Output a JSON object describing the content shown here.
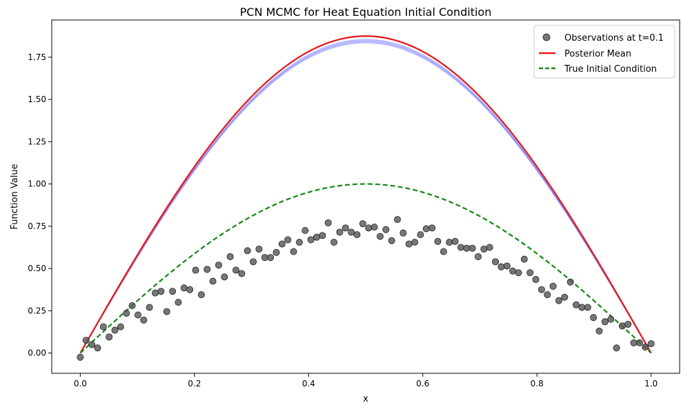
{
  "chart_data": {
    "type": "line",
    "title": "PCN MCMC for Heat Equation Initial Condition",
    "xlabel": "x",
    "ylabel": "Function Value",
    "xlim": [
      -0.05,
      1.05
    ],
    "ylim": [
      -0.12,
      1.97
    ],
    "x_ticks": [
      "0.0",
      "0.2",
      "0.4",
      "0.6",
      "0.8",
      "1.0"
    ],
    "y_ticks": [
      "0.00",
      "0.25",
      "0.50",
      "0.75",
      "1.00",
      "1.25",
      "1.50",
      "1.75"
    ],
    "legend_position": "top-right",
    "grid": false,
    "observations": {
      "name": "Observations at t=0.1",
      "color": "#555555",
      "x": [
        0.0,
        0.0101,
        0.0202,
        0.0303,
        0.0404,
        0.0505,
        0.0606,
        0.0707,
        0.0808,
        0.0909,
        0.101,
        0.1111,
        0.1212,
        0.1313,
        0.1414,
        0.1515,
        0.1616,
        0.1717,
        0.1818,
        0.1919,
        0.202,
        0.2121,
        0.2222,
        0.2323,
        0.2424,
        0.2525,
        0.2626,
        0.2727,
        0.2828,
        0.2929,
        0.303,
        0.3131,
        0.3232,
        0.3333,
        0.3434,
        0.3535,
        0.3636,
        0.3737,
        0.3838,
        0.3939,
        0.404,
        0.4141,
        0.4242,
        0.4343,
        0.4444,
        0.4545,
        0.4646,
        0.4747,
        0.4848,
        0.4949,
        0.5051,
        0.5152,
        0.5253,
        0.5354,
        0.5455,
        0.5556,
        0.5657,
        0.5758,
        0.5859,
        0.596,
        0.6061,
        0.6162,
        0.6263,
        0.6364,
        0.6465,
        0.6566,
        0.6667,
        0.6768,
        0.6869,
        0.697,
        0.7071,
        0.7172,
        0.7273,
        0.7374,
        0.7475,
        0.7576,
        0.7677,
        0.7778,
        0.7879,
        0.798,
        0.8081,
        0.8182,
        0.8283,
        0.8384,
        0.8485,
        0.8586,
        0.8687,
        0.8788,
        0.8889,
        0.899,
        0.9091,
        0.9192,
        0.9293,
        0.9394,
        0.9495,
        0.9596,
        0.9697,
        0.9798,
        0.9899,
        1.0
      ],
      "y": [
        -0.025,
        0.075,
        0.05,
        0.03,
        0.155,
        0.095,
        0.135,
        0.155,
        0.235,
        0.28,
        0.225,
        0.195,
        0.27,
        0.355,
        0.365,
        0.245,
        0.365,
        0.3,
        0.385,
        0.375,
        0.49,
        0.345,
        0.495,
        0.425,
        0.52,
        0.45,
        0.57,
        0.49,
        0.47,
        0.605,
        0.54,
        0.615,
        0.565,
        0.565,
        0.595,
        0.645,
        0.67,
        0.6,
        0.655,
        0.725,
        0.67,
        0.685,
        0.695,
        0.77,
        0.655,
        0.715,
        0.74,
        0.715,
        0.7,
        0.765,
        0.74,
        0.745,
        0.69,
        0.73,
        0.665,
        0.79,
        0.71,
        0.645,
        0.655,
        0.7,
        0.735,
        0.74,
        0.66,
        0.6,
        0.655,
        0.66,
        0.625,
        0.62,
        0.62,
        0.57,
        0.615,
        0.625,
        0.54,
        0.51,
        0.515,
        0.485,
        0.475,
        0.555,
        0.475,
        0.435,
        0.375,
        0.345,
        0.395,
        0.31,
        0.33,
        0.42,
        0.285,
        0.27,
        0.27,
        0.21,
        0.13,
        0.185,
        0.2,
        0.03,
        0.16,
        0.17,
        0.06,
        0.06,
        0.035,
        0.055
      ]
    },
    "series": [
      {
        "name": "Posterior Mean",
        "color": "#e41a1c",
        "style": "solid",
        "formula": "1.875*sin(pi*x)"
      },
      {
        "name": "True Initial Condition",
        "color": "#1a8a1a",
        "style": "dashed",
        "formula": "sin(pi*x)"
      }
    ],
    "samples": {
      "color": "#7777ff",
      "amplitudes": [
        1.845,
        1.835,
        1.855,
        1.84,
        1.85
      ]
    }
  }
}
